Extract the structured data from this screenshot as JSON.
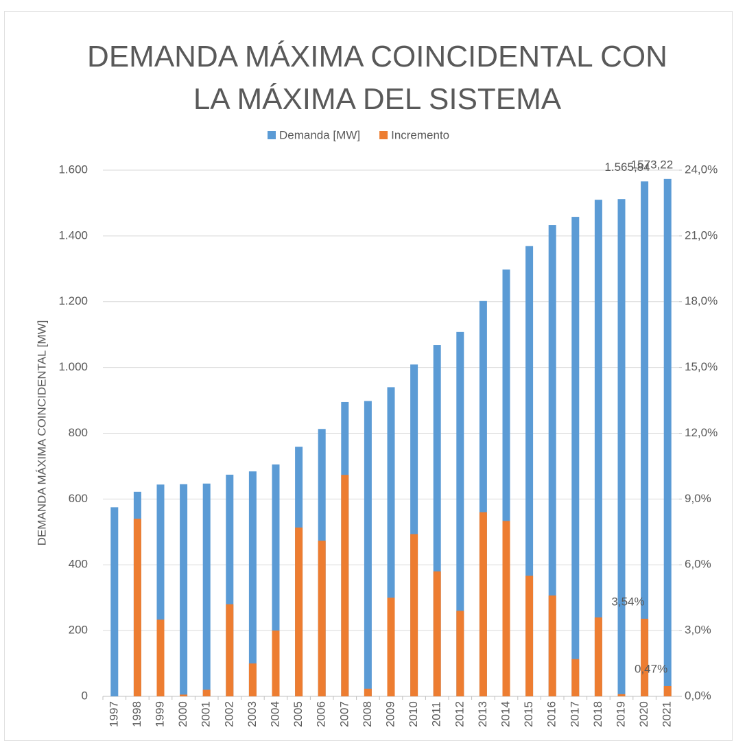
{
  "chart_data": {
    "type": "bar",
    "title": "DEMANDA MÁXIMA COINCIDENTAL CON LA MÁXIMA DEL SISTEMA",
    "ylabel": "DEMANDA MÁXIMA COINCIDENTAL [MW]",
    "categories": [
      "1997",
      "1998",
      "1999",
      "2000",
      "2001",
      "2002",
      "2003",
      "2004",
      "2005",
      "2006",
      "2007",
      "2008",
      "2009",
      "2010",
      "2011",
      "2012",
      "2013",
      "2014",
      "2015",
      "2016",
      "2017",
      "2018",
      "2019",
      "2020",
      "2021"
    ],
    "series": [
      {
        "name": "Demanda [MW]",
        "color": "#5b9bd5",
        "axis": "y",
        "values": [
          575,
          622,
          644,
          645,
          647,
          674,
          684,
          705,
          759,
          813,
          895,
          898,
          940,
          1009,
          1068,
          1108,
          1202,
          1298,
          1369,
          1433,
          1458,
          1510,
          1512,
          1565.84,
          1573.22
        ],
        "value_labels": [
          null,
          null,
          null,
          null,
          null,
          null,
          null,
          null,
          null,
          null,
          null,
          null,
          null,
          null,
          null,
          null,
          null,
          null,
          null,
          null,
          null,
          null,
          null,
          "1.565,84",
          "1573,22"
        ]
      },
      {
        "name": "Incremento",
        "color": "#ed7d31",
        "axis": "y2",
        "values": [
          null,
          8.1,
          3.5,
          0.08,
          0.3,
          4.2,
          1.5,
          3.0,
          7.7,
          7.1,
          10.1,
          0.35,
          4.5,
          7.4,
          5.7,
          3.9,
          8.4,
          8.0,
          5.5,
          4.6,
          1.7,
          3.6,
          0.1,
          3.54,
          0.47
        ],
        "value_labels": [
          null,
          null,
          null,
          null,
          null,
          null,
          null,
          null,
          null,
          null,
          null,
          null,
          null,
          null,
          null,
          null,
          null,
          null,
          null,
          null,
          null,
          null,
          null,
          "3,54%",
          "0,47%"
        ]
      }
    ],
    "ylim": [
      0,
      1600
    ],
    "yticks": [
      0,
      200,
      400,
      600,
      800,
      {
        "value": 1000,
        "label": "1.000"
      },
      {
        "value": 1200,
        "label": "1.200"
      },
      {
        "value": 1400,
        "label": "1.400"
      },
      {
        "value": 1600,
        "label": "1.600"
      }
    ],
    "y2lim": [
      0,
      24
    ],
    "y2ticks": [
      {
        "value": 0,
        "label": "0,0%"
      },
      {
        "value": 3,
        "label": "3,0%"
      },
      {
        "value": 6,
        "label": "6,0%"
      },
      {
        "value": 9,
        "label": "9,0%"
      },
      {
        "value": 12,
        "label": "12,0%"
      },
      {
        "value": 15,
        "label": "15,0%"
      },
      {
        "value": 18,
        "label": "18,0%"
      },
      {
        "value": 21,
        "label": "21,0%"
      },
      {
        "value": 24,
        "label": "24,0%"
      }
    ],
    "grid": true,
    "legend": "top"
  }
}
